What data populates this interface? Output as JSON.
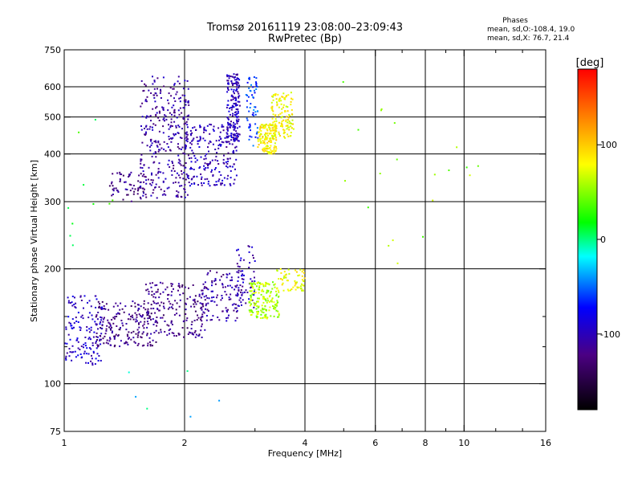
{
  "title": {
    "line1": "Tromsø 20161119 23:08:00–23:09:43",
    "line2": "RwPretec (Bp)"
  },
  "stats": {
    "heading": "Phases",
    "o_line": "mean, sd,O:-108.4, 19.0",
    "x_line": "mean, sd,X:  76.7, 21.4"
  },
  "chart_data": {
    "type": "scatter",
    "xlabel": "Frequency [MHz]",
    "ylabel": "Stationary phase Virtual Height [km]",
    "xscale": "log",
    "yscale": "log",
    "xlim": [
      1,
      16
    ],
    "ylim": [
      75,
      750
    ],
    "x_ticks": [
      1,
      2,
      4,
      6,
      8,
      10,
      16
    ],
    "x_tick_labels": [
      "1",
      "2",
      "4",
      "6",
      "8",
      "10",
      "16"
    ],
    "x_gridlines": [
      2,
      4,
      6,
      8,
      10
    ],
    "x_minor_ticks": [
      3,
      5,
      7,
      9,
      12,
      14
    ],
    "y_ticks": [
      75,
      100,
      200,
      300,
      400,
      500,
      600,
      750
    ],
    "y_tick_labels": [
      "75",
      "100",
      "200",
      "300",
      "400",
      "500",
      "600",
      "750"
    ],
    "y_gridlines": [
      100,
      200,
      300,
      400,
      500,
      600
    ],
    "y_minor_ticks": [
      125,
      150
    ],
    "grid": true,
    "colorbar": {
      "label": "[deg]",
      "range": [
        -180,
        180
      ],
      "ticks": [
        100,
        0,
        -100
      ],
      "tick_labels": [
        "100",
        "0",
        "-100"
      ]
    },
    "point_clusters": [
      {
        "name": "O-mode F-layer trace",
        "x_range": [
          1.55,
          2.05
        ],
        "y_range": [
          305,
          640
        ],
        "phase": -110,
        "count": 320
      },
      {
        "name": "O-mode F-layer trace",
        "x_range": [
          1.3,
          1.6
        ],
        "y_range": [
          300,
          360
        ],
        "phase": -120,
        "count": 60
      },
      {
        "name": "O-mode F-layer trace",
        "x_range": [
          2.0,
          2.7
        ],
        "y_range": [
          330,
          480
        ],
        "phase": -100,
        "count": 220
      },
      {
        "name": "O-mode F-layer trace",
        "x_range": [
          2.55,
          2.75
        ],
        "y_range": [
          430,
          650
        ],
        "phase": -100,
        "count": 180
      },
      {
        "name": "X-mode F-layer trace",
        "x_range": [
          2.85,
          3.05
        ],
        "y_range": [
          420,
          640
        ],
        "phase": -60,
        "count": 60
      },
      {
        "name": "X-mode F-layer trace",
        "x_range": [
          3.05,
          3.4
        ],
        "y_range": [
          400,
          480
        ],
        "phase": 85,
        "count": 150
      },
      {
        "name": "X-mode F-layer trace",
        "x_range": [
          3.3,
          3.75
        ],
        "y_range": [
          440,
          580
        ],
        "phase": 80,
        "count": 130
      },
      {
        "name": "O-mode E/F1 trace",
        "x_range": [
          1.0,
          1.25
        ],
        "y_range": [
          112,
          170
        ],
        "phase": -95,
        "count": 140
      },
      {
        "name": "O-mode E/F1 trace",
        "x_range": [
          1.2,
          1.7
        ],
        "y_range": [
          125,
          165
        ],
        "phase": -120,
        "count": 200
      },
      {
        "name": "O-mode E/F1 trace",
        "x_range": [
          1.6,
          2.25
        ],
        "y_range": [
          132,
          185
        ],
        "phase": -120,
        "count": 180
      },
      {
        "name": "O-mode E/F1 trace",
        "x_range": [
          2.2,
          2.8
        ],
        "y_range": [
          145,
          200
        ],
        "phase": -110,
        "count": 120
      },
      {
        "name": "O-mode E/F1 trace",
        "x_range": [
          2.7,
          3.0
        ],
        "y_range": [
          155,
          230
        ],
        "phase": -100,
        "count": 60
      },
      {
        "name": "X-mode E/F1 trace",
        "x_range": [
          2.9,
          3.45
        ],
        "y_range": [
          148,
          185
        ],
        "phase": 60,
        "count": 180
      },
      {
        "name": "X-mode E/F1 trace",
        "x_range": [
          3.4,
          4.0
        ],
        "y_range": [
          175,
          200
        ],
        "phase": 80,
        "count": 60
      },
      {
        "name": "isolated points",
        "x_range": [
          4.5,
          11
        ],
        "y_range": [
          200,
          650
        ],
        "phase": 50,
        "count": 20
      },
      {
        "name": "isolated points",
        "x_range": [
          1.3,
          2.6
        ],
        "y_range": [
          75,
          110
        ],
        "phase": -20,
        "count": 6
      },
      {
        "name": "isolated points",
        "x_range": [
          1.0,
          1.4
        ],
        "y_range": [
          210,
          620
        ],
        "phase": 20,
        "count": 10
      }
    ]
  }
}
